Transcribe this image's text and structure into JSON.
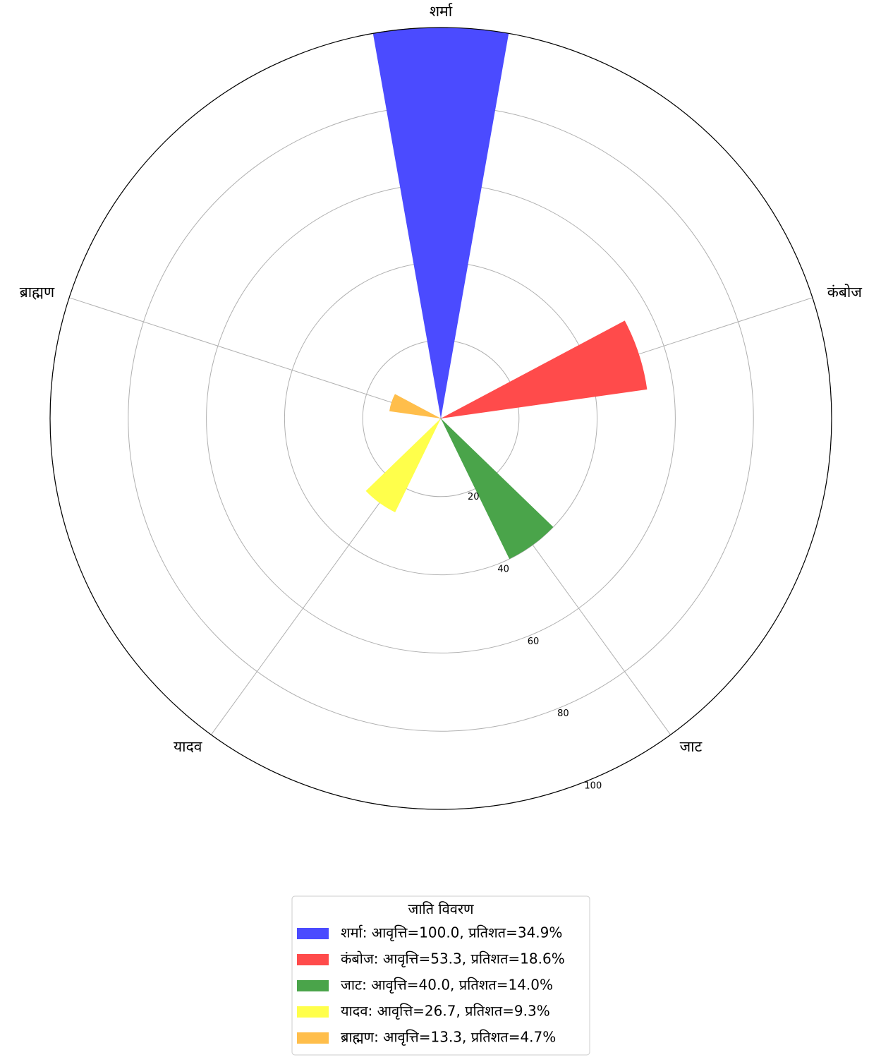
{
  "chart_data": {
    "type": "bar",
    "projection": "polar",
    "title": "",
    "categories": [
      "शर्मा",
      "कंबोज",
      "जाट",
      "यादव",
      "ब्राह्मण"
    ],
    "values": [
      100.0,
      53.3,
      40.0,
      26.7,
      13.3
    ],
    "percentages": [
      34.9,
      18.6,
      14.0,
      9.3,
      4.7
    ],
    "colors": [
      "#4b4bff",
      "#ff4b4b",
      "#4aa44a",
      "#ffff4b",
      "#ffbe4b"
    ],
    "rlim": [
      0,
      100
    ],
    "rticks": [
      20,
      40,
      60,
      80,
      100
    ],
    "rtick_labels": [
      "20",
      "40",
      "60",
      "80",
      "100"
    ],
    "grid": true,
    "theta_zero": "top",
    "direction": "clockwise",
    "legend": {
      "title": "जाति विवरण",
      "placement": "bottom-center",
      "entries": [
        "शर्मा: आवृत्ति=100.0, प्रतिशत=34.9%",
        "कंबोज: आवृत्ति=53.3, प्रतिशत=18.6%",
        "जाट: आवृत्ति=40.0, प्रतिशत=14.0%",
        "यादव: आवृत्ति=26.7, प्रतिशत=9.3%",
        "ब्राह्मण: आवृत्ति=13.3, प्रतिशत=4.7%"
      ]
    }
  }
}
